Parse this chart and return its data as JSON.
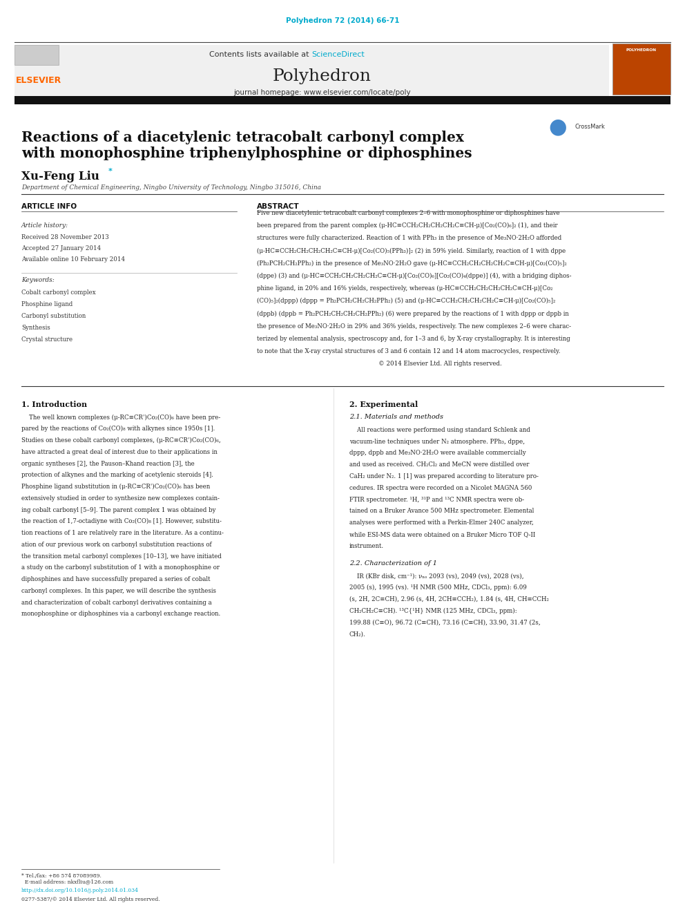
{
  "page_width": 9.92,
  "page_height": 13.23,
  "dpi": 100,
  "background": "#ffffff",
  "journal_ref_text": "Polyhedron 72 (2014) 66-71",
  "journal_ref_color": "#00aacc",
  "header_bg": "#f0f0f0",
  "elsevier_color": "#ff6600",
  "sciencedirect_color": "#00aacc",
  "title_text": "Reactions of a diacetylenic tetracobalt carbonyl complex\nwith monophosphine triphenylphosphine or diphosphines",
  "affiliation_text": "Department of Chemical Engineering, Ningbo University of Technology, Ningbo 315016, China",
  "article_info_label": "ARTICLE INFO",
  "abstract_label": "ABSTRACT",
  "article_history_label": "Article history:",
  "received_text": "Received 28 November 2013",
  "accepted_text": "Accepted 27 January 2014",
  "available_text": "Available online 10 February 2014",
  "keywords_label": "Keywords:",
  "keywords": [
    "Cobalt carbonyl complex",
    "Phosphine ligand",
    "Carbonyl substitution",
    "Synthesis",
    "Crystal structure"
  ],
  "intro_heading": "1. Introduction",
  "experimental_heading": "2. Experimental",
  "materials_heading": "2.1. Materials and methods",
  "char_heading": "2.2. Characterization of 1",
  "footnote_text": "* Tel./fax: +86 574 87089989.\n  E-mail address: nkxfliu@126.com",
  "doi_text": "http://dx.doi.org/10.1016/j.poly.2014.01.034",
  "copyright_text": "0277-5387/© 2014 Elsevier Ltd. All rights reserved."
}
